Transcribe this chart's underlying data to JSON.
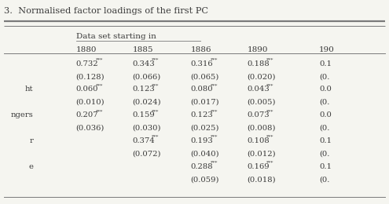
{
  "title": "3.  Normalised factor loadings of the first PC",
  "subheader": "Data set starting in",
  "col_headers": [
    "1880",
    "1885",
    "1886",
    "1890",
    "190"
  ],
  "row_label_col": [
    "",
    "",
    "ht",
    "",
    "ngers",
    "",
    "r",
    "",
    "e",
    ""
  ],
  "rows": [
    [
      "0.732***",
      "0.343***",
      "0.316***",
      "0.188***",
      "0.1"
    ],
    [
      "(0.128)",
      "(0.066)",
      "(0.065)",
      "(0.020)",
      "(0."
    ],
    [
      "0.060***",
      "0.123***",
      "0.080***",
      "0.043***",
      "0.0"
    ],
    [
      "(0.010)",
      "(0.024)",
      "(0.017)",
      "(0.005)",
      "(0."
    ],
    [
      "0.207***",
      "0.159***",
      "0.123***",
      "0.073***",
      "0.0"
    ],
    [
      "(0.036)",
      "(0.030)",
      "(0.025)",
      "(0.008)",
      "(0."
    ],
    [
      "",
      "0.374***",
      "0.193***",
      "0.108***",
      "0.1"
    ],
    [
      "",
      "(0.072)",
      "(0.040)",
      "(0.012)",
      "(0."
    ],
    [
      "",
      "",
      "0.288***",
      "0.169***",
      "0.1"
    ],
    [
      "",
      "",
      "(0.059)",
      "(0.018)",
      "(0."
    ]
  ],
  "figsize": [
    4.95,
    2.6
  ],
  "dpi": 100,
  "bg_color": "#f5f5f0",
  "text_color": "#3a3a3a",
  "line_color": "#7a7a7a"
}
